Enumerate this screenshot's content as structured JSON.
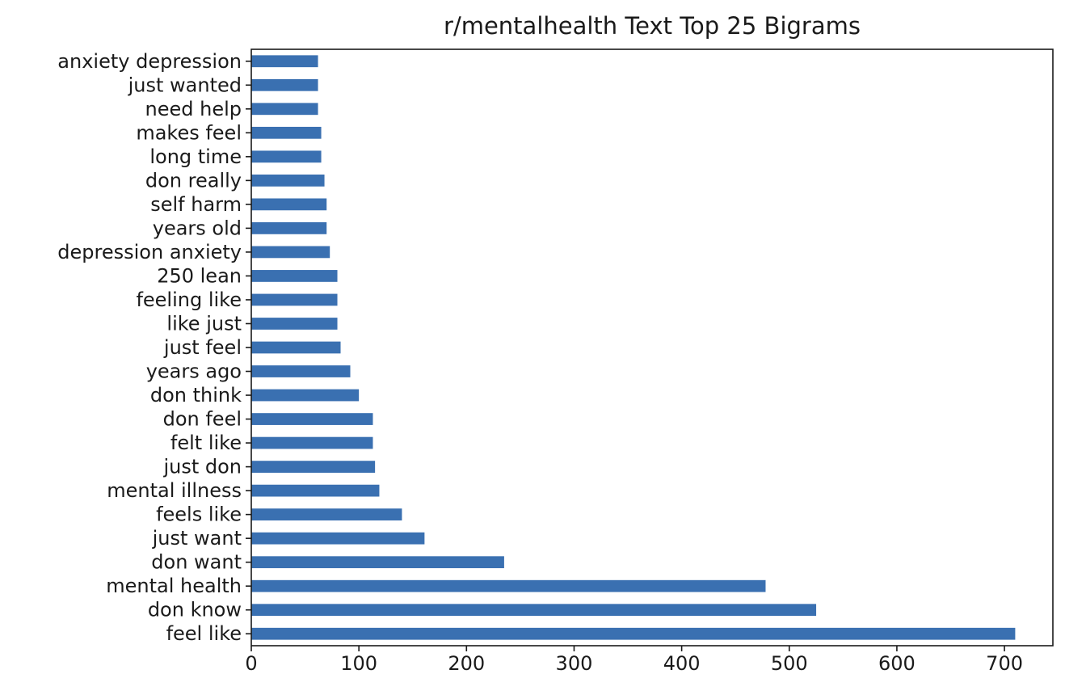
{
  "chart_data": {
    "type": "bar",
    "orientation": "horizontal",
    "title": "r/mentalhealth Text Top 25 Bigrams",
    "xlabel": "",
    "ylabel": "",
    "xlim": [
      0,
      745
    ],
    "xticks": [
      0,
      100,
      200,
      300,
      400,
      500,
      600,
      700
    ],
    "grid": false,
    "legend": "none",
    "color": "#3a70b1",
    "categories": [
      "feel like",
      "don know",
      "mental health",
      "don want",
      "just want",
      "feels like",
      "mental illness",
      "just don",
      "felt like",
      "don feel",
      "don think",
      "years ago",
      "just feel",
      "like just",
      "feeling like",
      "250 lean",
      "depression anxiety",
      "years old",
      "self harm",
      "don really",
      "long time",
      "makes feel",
      "need help",
      "just wanted",
      "anxiety depression"
    ],
    "values": [
      710,
      525,
      478,
      235,
      161,
      140,
      119,
      115,
      113,
      113,
      100,
      92,
      83,
      80,
      80,
      80,
      73,
      70,
      70,
      68,
      65,
      65,
      62,
      62,
      62
    ]
  }
}
